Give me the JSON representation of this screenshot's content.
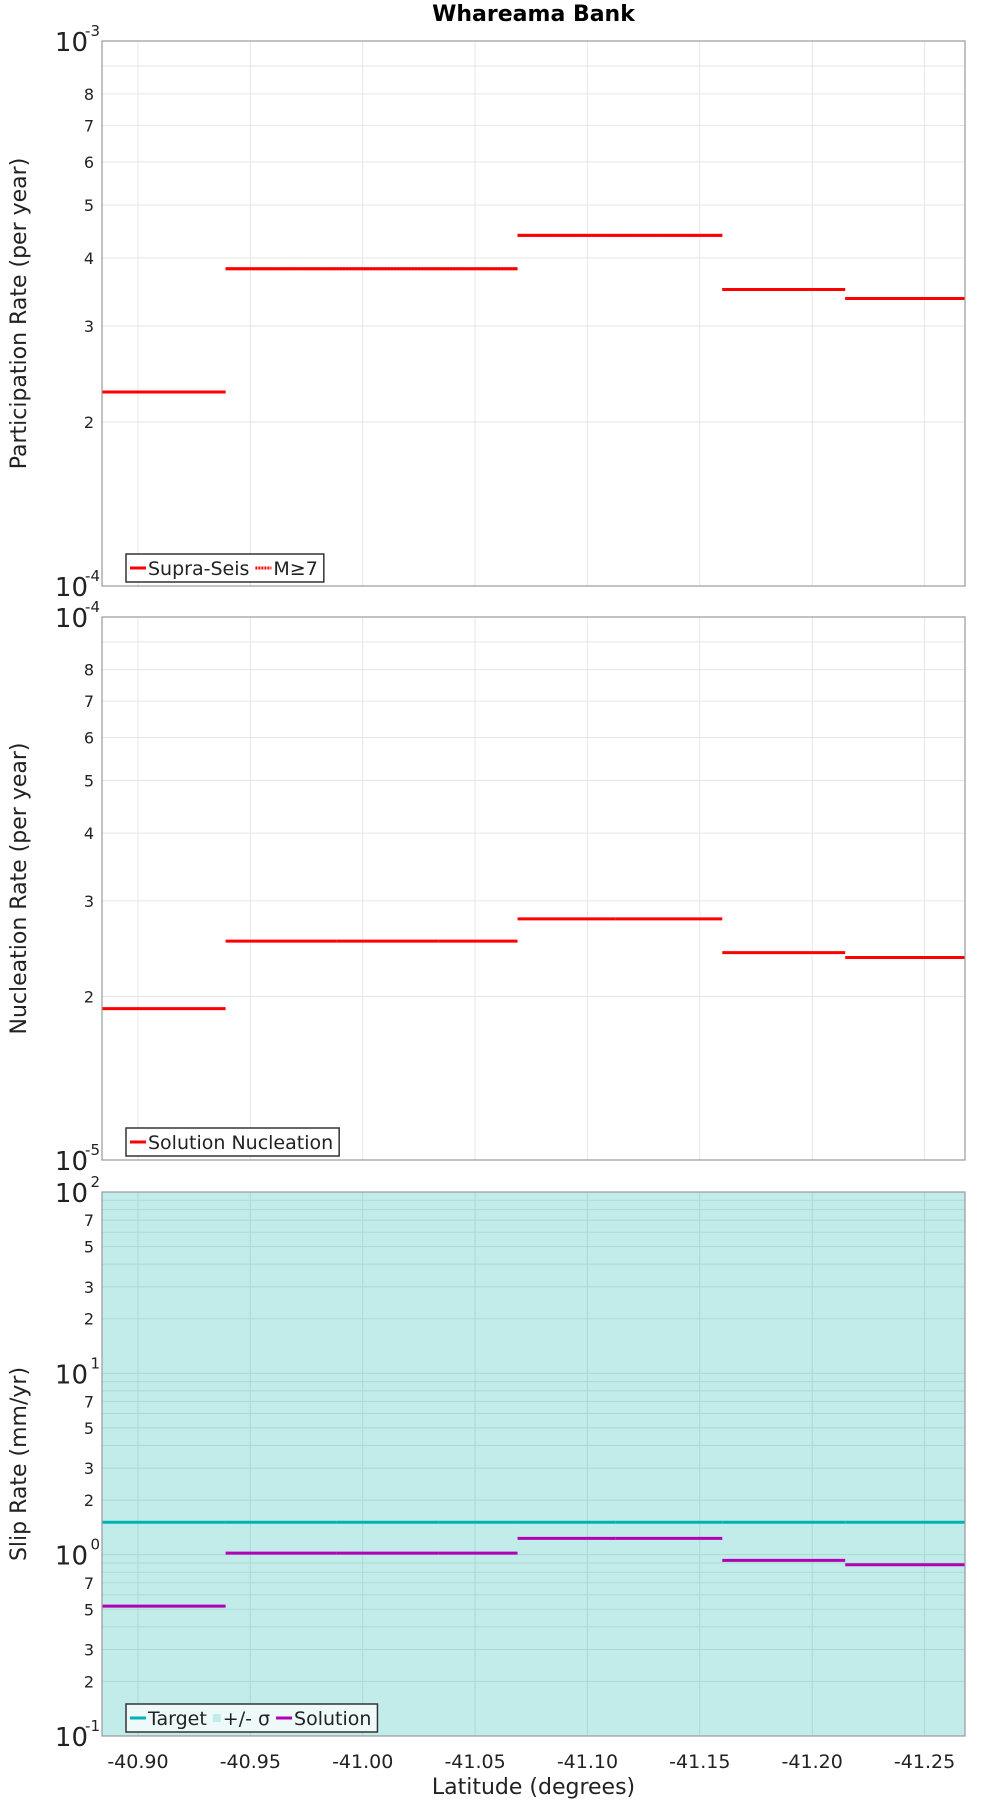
{
  "title": "Whareama Bank",
  "xaxis": {
    "label": "Latitude (degrees)",
    "xlim": [
      -40.884,
      -41.268
    ],
    "ticks": [
      -40.9,
      -40.95,
      -41.0,
      -41.05,
      -41.1,
      -41.15,
      -41.2,
      -41.25
    ],
    "tick_labels": [
      "-40.90",
      "-40.95",
      "-41.00",
      "-41.05",
      "-41.10",
      "-41.15",
      "-41.20",
      "-41.25"
    ]
  },
  "chart_data": [
    {
      "type": "line",
      "ylabel": "Participation Rate (per year)",
      "yscale": "log",
      "ylim": [
        0.0001,
        0.001
      ],
      "decade_labels": [
        {
          "base": "10",
          "exp": "-3",
          "value": 0.001
        },
        {
          "base": "10",
          "exp": "-4",
          "value": 0.0001
        }
      ],
      "minor_labels": [
        "2",
        "3",
        "4",
        "5",
        "6",
        "7",
        "8"
      ],
      "legend": {
        "placement": "bottom-left",
        "entries": [
          {
            "label": "Supra-Seis",
            "color": "#ff0000",
            "style": "solid"
          },
          {
            "label": "M≥7",
            "color": "#ff0000",
            "style": "dotted"
          }
        ]
      },
      "series": [
        {
          "name": "Supra-Seis",
          "color": "#ff0000",
          "style": "solid",
          "segments": [
            [
              -40.884,
              -40.939,
              0.000227
            ],
            [
              -40.939,
              -40.9885,
              0.000382
            ],
            [
              -40.9885,
              -41.0336,
              0.000382
            ],
            [
              -41.0336,
              -41.0689,
              0.000382
            ],
            [
              -41.0689,
              -41.1124,
              0.00044
            ],
            [
              -41.1124,
              -41.16,
              0.00044
            ],
            [
              -41.16,
              -41.2147,
              0.00035
            ],
            [
              -41.2147,
              -41.268,
              0.000337
            ]
          ]
        },
        {
          "name": "M≥7",
          "color": "#ff0000",
          "style": "dotted",
          "segments": [
            [
              -40.884,
              -40.939,
              0.000227
            ],
            [
              -40.939,
              -40.9885,
              0.000382
            ],
            [
              -40.9885,
              -41.0336,
              0.000382
            ],
            [
              -41.0336,
              -41.0689,
              0.000382
            ],
            [
              -41.0689,
              -41.1124,
              0.00044
            ],
            [
              -41.1124,
              -41.16,
              0.00044
            ],
            [
              -41.16,
              -41.2147,
              0.00035
            ],
            [
              -41.2147,
              -41.268,
              0.000337
            ]
          ]
        }
      ]
    },
    {
      "type": "line",
      "ylabel": "Nucleation Rate (per year)",
      "yscale": "log",
      "ylim": [
        1e-05,
        0.0001
      ],
      "decade_labels": [
        {
          "base": "10",
          "exp": "-4",
          "value": 0.0001
        },
        {
          "base": "10",
          "exp": "-5",
          "value": 1e-05
        }
      ],
      "minor_labels": [
        "2",
        "3",
        "4",
        "5",
        "6",
        "7",
        "8"
      ],
      "legend": {
        "placement": "bottom-left",
        "entries": [
          {
            "label": "Solution Nucleation",
            "color": "#ff0000",
            "style": "solid"
          }
        ]
      },
      "series": [
        {
          "name": "Solution Nucleation",
          "color": "#ff0000",
          "style": "solid",
          "segments": [
            [
              -40.884,
              -40.939,
              1.9e-05
            ],
            [
              -40.939,
              -40.9885,
              2.53e-05
            ],
            [
              -40.9885,
              -41.0336,
              2.53e-05
            ],
            [
              -41.0336,
              -41.0689,
              2.53e-05
            ],
            [
              -41.0689,
              -41.1124,
              2.78e-05
            ],
            [
              -41.1124,
              -41.16,
              2.78e-05
            ],
            [
              -41.16,
              -41.2147,
              2.41e-05
            ],
            [
              -41.2147,
              -41.268,
              2.36e-05
            ]
          ]
        }
      ]
    },
    {
      "type": "line",
      "ylabel": "Slip Rate (mm/yr)",
      "yscale": "log",
      "ylim": [
        0.1,
        100
      ],
      "decade_labels": [
        {
          "base": "10",
          "exp": "2",
          "value": 100
        },
        {
          "base": "10",
          "exp": "1",
          "value": 10
        },
        {
          "base": "10",
          "exp": "0",
          "value": 1
        },
        {
          "base": "10",
          "exp": "-1",
          "value": 0.1
        }
      ],
      "minor_labels": [
        "2",
        "3",
        "5",
        "7"
      ],
      "legend": {
        "placement": "bottom-left",
        "entries": [
          {
            "label": "Target",
            "color": "#00b3b3",
            "style": "solid"
          },
          {
            "label": "+/- σ",
            "color": "#c2ecea",
            "style": "fill"
          },
          {
            "label": "Solution",
            "color": "#b300b3",
            "style": "solid"
          }
        ]
      },
      "band": {
        "name": "+/- σ",
        "color": "#c2ecea",
        "range": [
          0.1,
          100
        ]
      },
      "series": [
        {
          "name": "Target",
          "color": "#00b3b3",
          "style": "solid",
          "segments": [
            [
              -40.884,
              -40.939,
              1.51
            ],
            [
              -40.939,
              -40.9885,
              1.51
            ],
            [
              -40.9885,
              -41.0336,
              1.51
            ],
            [
              -41.0336,
              -41.0689,
              1.51
            ],
            [
              -41.0689,
              -41.1124,
              1.51
            ],
            [
              -41.1124,
              -41.16,
              1.51
            ],
            [
              -41.16,
              -41.2147,
              1.51
            ],
            [
              -41.2147,
              -41.268,
              1.51
            ]
          ]
        },
        {
          "name": "Solution",
          "color": "#b300b3",
          "style": "solid",
          "segments": [
            [
              -40.884,
              -40.939,
              0.52
            ],
            [
              -40.939,
              -40.9885,
              1.02
            ],
            [
              -40.9885,
              -41.0336,
              1.02
            ],
            [
              -41.0336,
              -41.0689,
              1.02
            ],
            [
              -41.0689,
              -41.1124,
              1.23
            ],
            [
              -41.1124,
              -41.16,
              1.23
            ],
            [
              -41.16,
              -41.2147,
              0.93
            ],
            [
              -41.2147,
              -41.268,
              0.88
            ]
          ]
        }
      ]
    }
  ]
}
